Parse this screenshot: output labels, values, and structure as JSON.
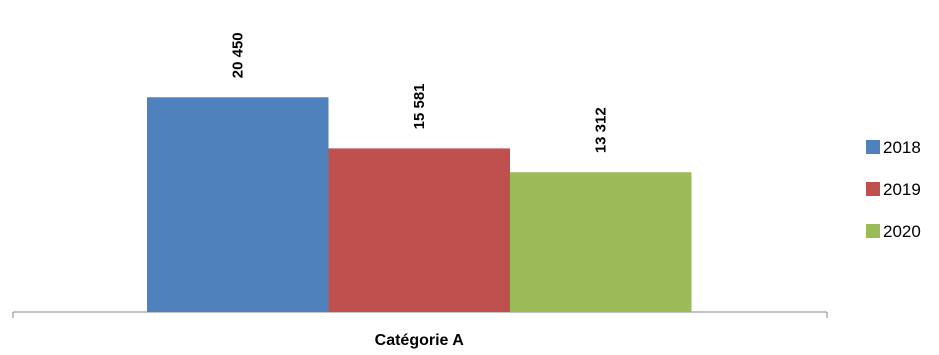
{
  "chart_data": {
    "type": "bar",
    "categories": [
      "Catégorie A"
    ],
    "series": [
      {
        "name": "2018",
        "values": [
          20450
        ],
        "label": "20 450",
        "color": "#4f81bd"
      },
      {
        "name": "2019",
        "values": [
          15581
        ],
        "label": "15 581",
        "color": "#c0504d"
      },
      {
        "name": "2020",
        "values": [
          13312
        ],
        "label": "13 312",
        "color": "#9bbb59"
      }
    ],
    "title": "",
    "xlabel": "",
    "ylabel": "",
    "ylim": [
      0,
      24000
    ],
    "grid": false,
    "legend_position": "right"
  }
}
